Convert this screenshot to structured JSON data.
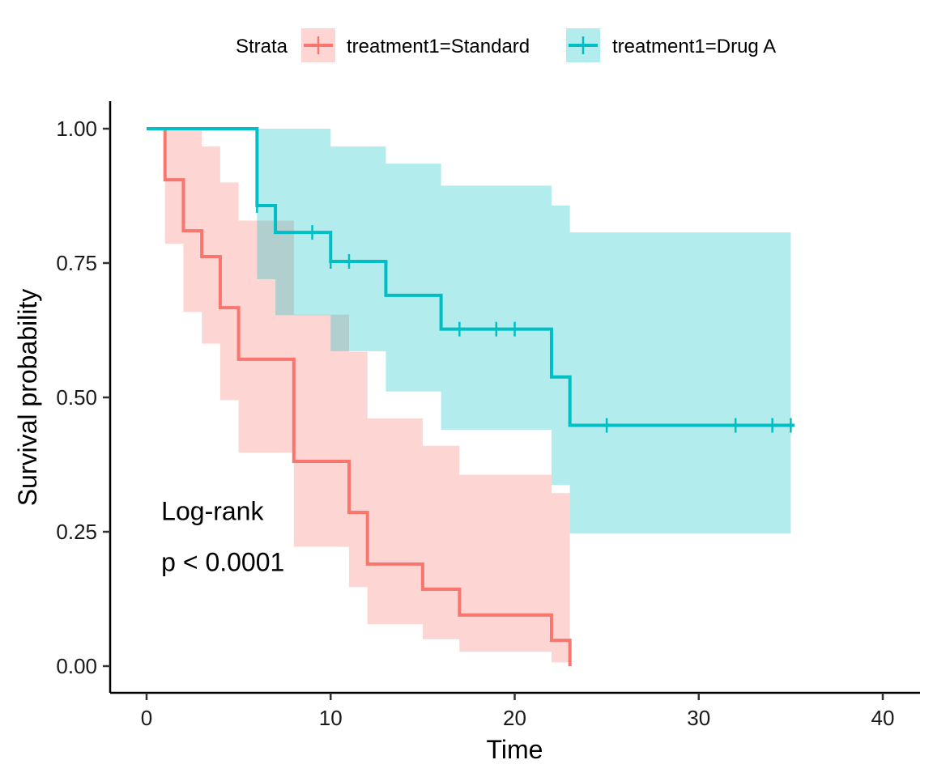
{
  "chart_data": {
    "type": "line",
    "subtype": "kaplan-meier-step",
    "title": "",
    "xlabel": "Time",
    "ylabel": "Survival probability",
    "xlim": [
      0,
      40
    ],
    "ylim": [
      0,
      1
    ],
    "x_ticks": [
      0,
      10,
      20,
      30,
      40
    ],
    "x_tick_labels": [
      "0",
      "10",
      "20",
      "30",
      "40"
    ],
    "y_ticks": [
      0,
      0.25,
      0.5,
      0.75,
      1.0
    ],
    "y_tick_labels": [
      "0.00",
      "0.25",
      "0.50",
      "0.75",
      "1.00"
    ],
    "grid": false,
    "legend": {
      "position": "top",
      "title": "Strata"
    },
    "annotations": [
      {
        "text": "Log-rank",
        "x": 0.8,
        "y": 0.29
      },
      {
        "text": "p < 0.0001",
        "x": 0.8,
        "y": 0.195
      }
    ],
    "series": [
      {
        "name": "treatment1=Standard",
        "color": "#F8766D",
        "fill": "#FBC4C0",
        "steps": [
          {
            "x": 0,
            "y": 1.0
          },
          {
            "x": 1,
            "y": 0.905
          },
          {
            "x": 2,
            "y": 0.81
          },
          {
            "x": 3,
            "y": 0.762
          },
          {
            "x": 4,
            "y": 0.667
          },
          {
            "x": 5,
            "y": 0.571
          },
          {
            "x": 8,
            "y": 0.381
          },
          {
            "x": 11,
            "y": 0.286
          },
          {
            "x": 12,
            "y": 0.19
          },
          {
            "x": 15,
            "y": 0.143
          },
          {
            "x": 17,
            "y": 0.095
          },
          {
            "x": 22,
            "y": 0.048
          },
          {
            "x": 23,
            "y": 0.0
          }
        ],
        "end_x": 23,
        "censored": [],
        "ci": [
          {
            "x": 1,
            "lower": 0.786,
            "upper": 1.0
          },
          {
            "x": 2,
            "lower": 0.659,
            "upper": 1.0
          },
          {
            "x": 3,
            "lower": 0.6,
            "upper": 0.967
          },
          {
            "x": 4,
            "lower": 0.495,
            "upper": 0.9
          },
          {
            "x": 5,
            "lower": 0.397,
            "upper": 0.829
          },
          {
            "x": 8,
            "lower": 0.222,
            "upper": 0.654
          },
          {
            "x": 11,
            "lower": 0.147,
            "upper": 0.585
          },
          {
            "x": 12,
            "lower": 0.078,
            "upper": 0.461
          },
          {
            "x": 15,
            "lower": 0.05,
            "upper": 0.41
          },
          {
            "x": 17,
            "lower": 0.027,
            "upper": 0.356
          },
          {
            "x": 22,
            "lower": 0.007,
            "upper": 0.322
          }
        ],
        "ci_end_x": 23
      },
      {
        "name": "treatment1=Drug A",
        "color": "#00BFC4",
        "fill": "#B3ECEE",
        "steps": [
          {
            "x": 0,
            "y": 1.0
          },
          {
            "x": 6,
            "y": 0.857
          },
          {
            "x": 7,
            "y": 0.807
          },
          {
            "x": 10,
            "y": 0.753
          },
          {
            "x": 13,
            "y": 0.69
          },
          {
            "x": 16,
            "y": 0.627
          },
          {
            "x": 22,
            "y": 0.538
          },
          {
            "x": 23,
            "y": 0.448
          }
        ],
        "end_x": 35.2,
        "censored": [
          {
            "x": 6,
            "y": 0.857
          },
          {
            "x": 9,
            "y": 0.807
          },
          {
            "x": 10,
            "y": 0.753
          },
          {
            "x": 11,
            "y": 0.753
          },
          {
            "x": 17,
            "y": 0.627
          },
          {
            "x": 19,
            "y": 0.627
          },
          {
            "x": 20,
            "y": 0.627
          },
          {
            "x": 25,
            "y": 0.448
          },
          {
            "x": 32,
            "y": 0.448
          },
          {
            "x": 34,
            "y": 0.448
          },
          {
            "x": 35,
            "y": 0.448
          }
        ],
        "ci": [
          {
            "x": 6,
            "lower": 0.72,
            "upper": 1.0
          },
          {
            "x": 7,
            "lower": 0.653,
            "upper": 1.0
          },
          {
            "x": 10,
            "lower": 0.586,
            "upper": 0.967
          },
          {
            "x": 13,
            "lower": 0.511,
            "upper": 0.935
          },
          {
            "x": 16,
            "lower": 0.44,
            "upper": 0.894
          },
          {
            "x": 22,
            "lower": 0.337,
            "upper": 0.857
          },
          {
            "x": 23,
            "lower": 0.247,
            "upper": 0.807
          }
        ],
        "ci_end_x": 35
      }
    ]
  }
}
